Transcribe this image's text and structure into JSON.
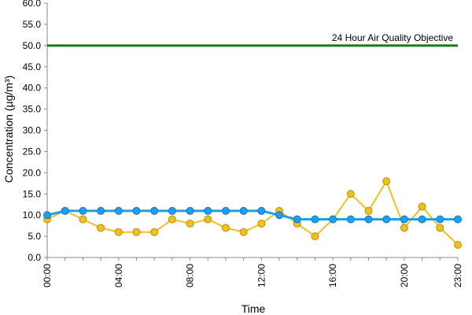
{
  "chart_data": {
    "type": "line",
    "title": "",
    "xlabel": "Time",
    "ylabel": "Concentration (µg/m³)",
    "ylim": [
      0,
      60
    ],
    "y_ticks": [
      "0.0",
      "5.0",
      "10.0",
      "15.0",
      "20.0",
      "25.0",
      "30.0",
      "35.0",
      "40.0",
      "45.0",
      "50.0",
      "55.0",
      "60.0"
    ],
    "x_categories": [
      "00:00",
      "01:00",
      "02:00",
      "03:00",
      "04:00",
      "05:00",
      "06:00",
      "07:00",
      "08:00",
      "09:00",
      "10:00",
      "11:00",
      "12:00",
      "13:00",
      "14:00",
      "15:00",
      "16:00",
      "17:00",
      "18:00",
      "19:00",
      "20:00",
      "21:00",
      "22:00",
      "23:00"
    ],
    "x_tick_labels": [
      "00:00",
      "04:00",
      "08:00",
      "12:00",
      "16:00",
      "20:00",
      "23:00"
    ],
    "grid": false,
    "legend": "none",
    "series": [
      {
        "color": "#f0c020",
        "values": [
          9,
          11,
          9,
          7,
          6,
          6,
          6,
          9,
          8,
          9,
          7,
          6,
          8,
          11,
          8,
          5,
          9,
          15,
          11,
          18,
          7,
          12,
          7,
          3
        ]
      },
      {
        "color": "#1e9ff2",
        "values": [
          10,
          11,
          11,
          11,
          11,
          11,
          11,
          11,
          11,
          11,
          11,
          11,
          11,
          10,
          9,
          9,
          9,
          9,
          9,
          9,
          9,
          9,
          9,
          9
        ]
      }
    ],
    "reference_line": {
      "value": 50,
      "label": "24 Hour Air Quality Objective",
      "color": "#1a7a1a"
    }
  }
}
